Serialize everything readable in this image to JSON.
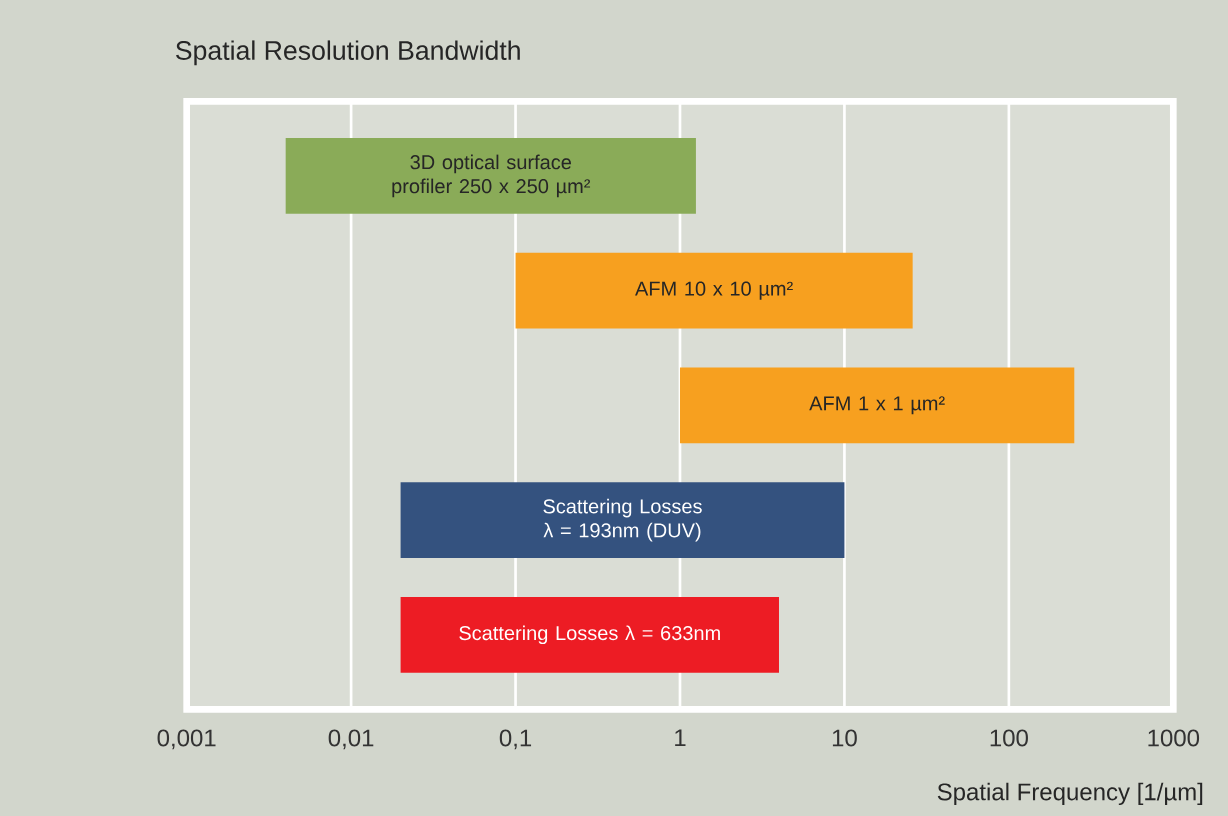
{
  "chart_data": {
    "type": "bar",
    "orientation": "horizontal",
    "title": "Spatial Resolution Bandwidth",
    "xlabel": "Spatial Frequency [1/µm]",
    "categories": [
      "3D optical surface profiler 250 x 250 µm²",
      "AFM 10 x 10 µm²",
      "AFM 1 x 1 µm²",
      "Scattering Losses λ = 193nm (DUV)",
      "Scattering Losses λ = 633nm"
    ],
    "base": [
      0.004,
      0.1,
      1,
      0.02,
      0.02
    ],
    "values": [
      1.246,
      25.9,
      249,
      9.98,
      3.98
    ],
    "colors": [
      "#8aab58",
      "#f7a01f",
      "#f7a01f",
      "#34527f",
      "#ed1c24"
    ],
    "log": "x",
    "grid": "x",
    "xlim": [
      0.001,
      1000
    ],
    "xticks": [
      {
        "value": 0.001,
        "label": "0,001"
      },
      {
        "value": 0.01,
        "label": "0,01"
      },
      {
        "value": 0.1,
        "label": "0,1"
      },
      1,
      10,
      100,
      1000
    ]
  }
}
